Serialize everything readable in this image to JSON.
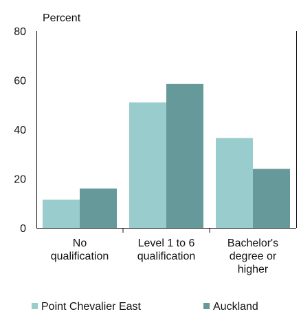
{
  "chart_data": {
    "type": "bar",
    "ylabel": "Percent",
    "ylim": [
      0,
      80
    ],
    "yticks": [
      0,
      20,
      40,
      60,
      80
    ],
    "categories": [
      [
        "No",
        "qualification"
      ],
      [
        "Level 1 to 6",
        "qualification"
      ],
      [
        "Bachelor's",
        "degree or",
        "higher"
      ]
    ],
    "series": [
      {
        "name": "Point Chevalier East",
        "color": "#99cccc",
        "values": [
          11.5,
          51,
          36.5
        ]
      },
      {
        "name": "Auckland",
        "color": "#669999",
        "values": [
          16,
          58.5,
          24
        ]
      }
    ],
    "grid": false,
    "legend": "bottom"
  }
}
